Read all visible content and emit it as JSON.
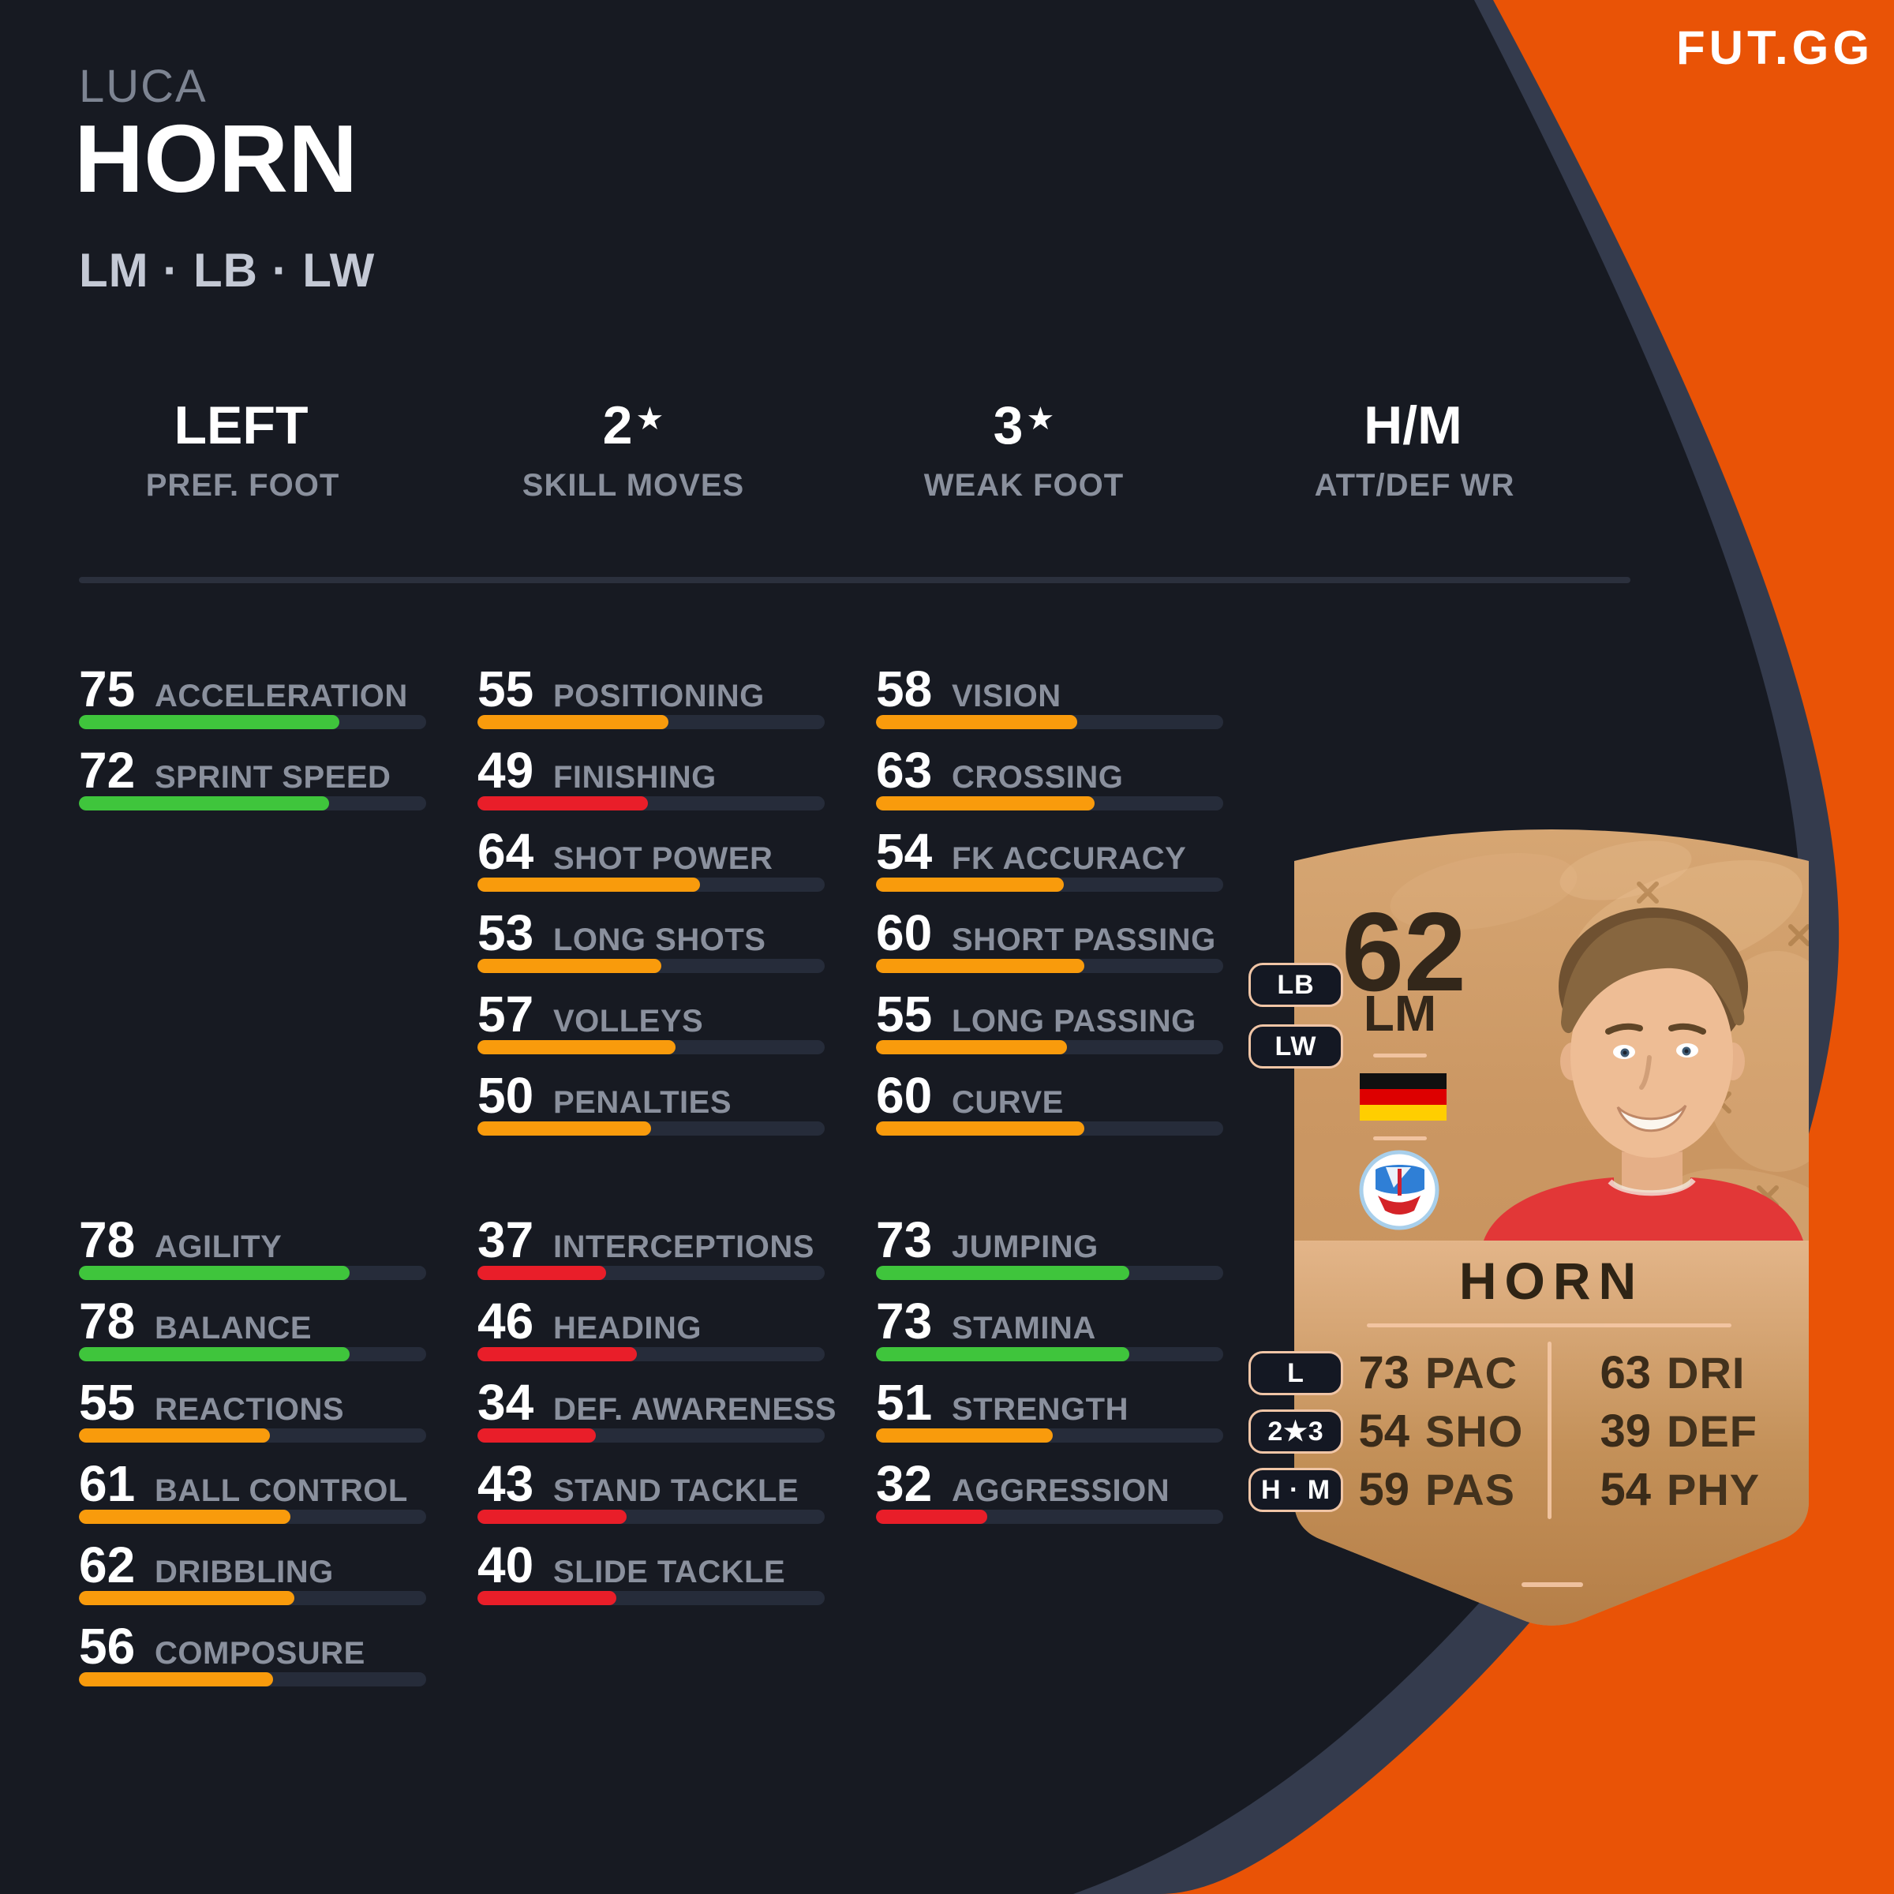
{
  "brand": {
    "logo": "FUT.GG"
  },
  "player": {
    "first_name": "LUCA",
    "last_name": "HORN",
    "positions": "LM · LB · LW"
  },
  "info_row": [
    {
      "value_main": "LEFT",
      "value_star": "",
      "label": "PREF. FOOT"
    },
    {
      "value_main": "2",
      "value_star": "★",
      "label": "SKILL MOVES"
    },
    {
      "value_main": "3",
      "value_star": "★",
      "label": "WEAK FOOT"
    },
    {
      "value_main": "H/M",
      "value_star": "",
      "label": "ATT/DEF WR"
    }
  ],
  "stat_groups": [
    {
      "id": "pace",
      "stats": [
        {
          "value": 75,
          "label": "ACCELERATION",
          "tier": "green"
        },
        {
          "value": 72,
          "label": "SPRINT SPEED",
          "tier": "green"
        }
      ]
    },
    {
      "id": "shooting",
      "stats": [
        {
          "value": 55,
          "label": "POSITIONING",
          "tier": "orange"
        },
        {
          "value": 49,
          "label": "FINISHING",
          "tier": "red"
        },
        {
          "value": 64,
          "label": "SHOT POWER",
          "tier": "orange"
        },
        {
          "value": 53,
          "label": "LONG SHOTS",
          "tier": "orange"
        },
        {
          "value": 57,
          "label": "VOLLEYS",
          "tier": "orange"
        },
        {
          "value": 50,
          "label": "PENALTIES",
          "tier": "orange"
        }
      ]
    },
    {
      "id": "passing",
      "stats": [
        {
          "value": 58,
          "label": "VISION",
          "tier": "orange"
        },
        {
          "value": 63,
          "label": "CROSSING",
          "tier": "orange"
        },
        {
          "value": 54,
          "label": "FK ACCURACY",
          "tier": "orange"
        },
        {
          "value": 60,
          "label": "SHORT PASSING",
          "tier": "orange"
        },
        {
          "value": 55,
          "label": "LONG PASSING",
          "tier": "orange"
        },
        {
          "value": 60,
          "label": "CURVE",
          "tier": "orange"
        }
      ]
    },
    {
      "id": "dribbling",
      "stats": [
        {
          "value": 78,
          "label": "AGILITY",
          "tier": "green"
        },
        {
          "value": 78,
          "label": "BALANCE",
          "tier": "green"
        },
        {
          "value": 55,
          "label": "REACTIONS",
          "tier": "orange"
        },
        {
          "value": 61,
          "label": "BALL CONTROL",
          "tier": "orange"
        },
        {
          "value": 62,
          "label": "DRIBBLING",
          "tier": "orange"
        },
        {
          "value": 56,
          "label": "COMPOSURE",
          "tier": "orange"
        }
      ]
    },
    {
      "id": "defending",
      "stats": [
        {
          "value": 37,
          "label": "INTERCEPTIONS",
          "tier": "red"
        },
        {
          "value": 46,
          "label": "HEADING",
          "tier": "red"
        },
        {
          "value": 34,
          "label": "DEF. AWARENESS",
          "tier": "red"
        },
        {
          "value": 43,
          "label": "STAND TACKLE",
          "tier": "red"
        },
        {
          "value": 40,
          "label": "SLIDE TACKLE",
          "tier": "red"
        }
      ]
    },
    {
      "id": "physical",
      "stats": [
        {
          "value": 73,
          "label": "JUMPING",
          "tier": "green"
        },
        {
          "value": 73,
          "label": "STAMINA",
          "tier": "green"
        },
        {
          "value": 51,
          "label": "STRENGTH",
          "tier": "orange"
        },
        {
          "value": 32,
          "label": "AGGRESSION",
          "tier": "red"
        }
      ]
    }
  ],
  "card": {
    "rating": "62",
    "position": "LM",
    "alt_positions": [
      "LB",
      "LW"
    ],
    "name": "HORN",
    "nation": "Germany",
    "club": "FC Hansa Rostock",
    "face_stats_left": [
      {
        "value": "73",
        "label": "PAC"
      },
      {
        "value": "54",
        "label": "SHO"
      },
      {
        "value": "59",
        "label": "PAS"
      }
    ],
    "face_stats_right": [
      {
        "value": "63",
        "label": "DRI"
      },
      {
        "value": "39",
        "label": "DEF"
      },
      {
        "value": "54",
        "label": "PHY"
      }
    ],
    "side_badges": [
      "L",
      "2★3",
      "H · M"
    ]
  },
  "chart_data": {
    "type": "bar",
    "title": "Luca Horn player attributes",
    "value_range": [
      0,
      100
    ],
    "tier_colors": {
      "green": "#3fc53c",
      "orange": "#f99b0c",
      "red": "#e91e29"
    },
    "groups": [
      {
        "name": "pace",
        "categories": [
          "ACCELERATION",
          "SPRINT SPEED"
        ],
        "values": [
          75,
          72
        ]
      },
      {
        "name": "shooting",
        "categories": [
          "POSITIONING",
          "FINISHING",
          "SHOT POWER",
          "LONG SHOTS",
          "VOLLEYS",
          "PENALTIES"
        ],
        "values": [
          55,
          49,
          64,
          53,
          57,
          50
        ]
      },
      {
        "name": "passing",
        "categories": [
          "VISION",
          "CROSSING",
          "FK ACCURACY",
          "SHORT PASSING",
          "LONG PASSING",
          "CURVE"
        ],
        "values": [
          58,
          63,
          54,
          60,
          55,
          60
        ]
      },
      {
        "name": "dribbling",
        "categories": [
          "AGILITY",
          "BALANCE",
          "REACTIONS",
          "BALL CONTROL",
          "DRIBBLING",
          "COMPOSURE"
        ],
        "values": [
          78,
          78,
          55,
          61,
          62,
          56
        ]
      },
      {
        "name": "defending",
        "categories": [
          "INTERCEPTIONS",
          "HEADING",
          "DEF. AWARENESS",
          "STAND TACKLE",
          "SLIDE TACKLE"
        ],
        "values": [
          37,
          46,
          34,
          43,
          40
        ]
      },
      {
        "name": "physical",
        "categories": [
          "JUMPING",
          "STAMINA",
          "STRENGTH",
          "AGGRESSION"
        ],
        "values": [
          73,
          73,
          51,
          32
        ]
      }
    ]
  },
  "colors": {
    "background_orange": "#e95306",
    "panel_dark": "#171a22",
    "panel_ring": "#343b4d",
    "bar_track": "#262c3a",
    "green": "#3fc53c",
    "orange": "#f99b0c",
    "red": "#e91e29",
    "label_gray": "#8a909d",
    "card_bronze": "#c99560",
    "accent_line": "#f4c7a5"
  }
}
